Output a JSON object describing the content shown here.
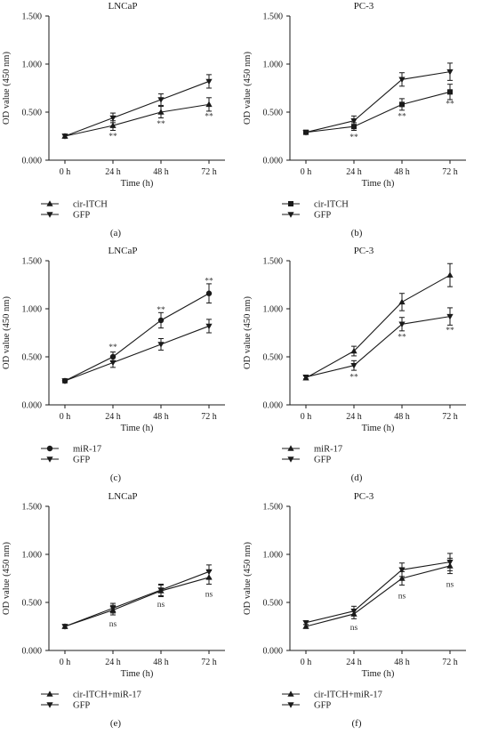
{
  "chart_data": [
    {
      "panel_letter": "(a)",
      "type": "line",
      "title": "LNCaP",
      "xlabel": "Time (h)",
      "ylabel": "OD value (450 nm)",
      "categories": [
        "0 h",
        "24 h",
        "48 h",
        "72 h"
      ],
      "ylim": [
        0,
        1.5
      ],
      "yticks": [
        "0.000",
        "0.500",
        "1.000",
        "1.500"
      ],
      "grid": false,
      "legend_position": "bottom-left",
      "series": [
        {
          "name": "cir-ITCH",
          "marker": "triangle-up",
          "values": [
            0.25,
            0.36,
            0.5,
            0.58
          ],
          "errors": [
            0.02,
            0.05,
            0.06,
            0.07
          ]
        },
        {
          "name": "GFP",
          "marker": "triangle-down",
          "values": [
            0.25,
            0.44,
            0.63,
            0.82
          ],
          "errors": [
            0.02,
            0.05,
            0.06,
            0.07
          ]
        }
      ],
      "annotations": [
        {
          "x": "24 h",
          "y": 0.25,
          "text": "**"
        },
        {
          "x": "48 h",
          "y": 0.38,
          "text": "**"
        },
        {
          "x": "72 h",
          "y": 0.46,
          "text": "**"
        }
      ]
    },
    {
      "panel_letter": "(b)",
      "type": "line",
      "title": "PC-3",
      "xlabel": "Time (h)",
      "ylabel": "OD value (450 nm)",
      "categories": [
        "0 h",
        "24 h",
        "48 h",
        "72 h"
      ],
      "ylim": [
        0,
        1.5
      ],
      "yticks": [
        "0.000",
        "0.500",
        "1.000",
        "1.500"
      ],
      "grid": false,
      "legend_position": "bottom-left",
      "series": [
        {
          "name": "cir-ITCH",
          "marker": "square",
          "values": [
            0.29,
            0.35,
            0.58,
            0.71
          ],
          "errors": [
            0.02,
            0.04,
            0.06,
            0.08
          ]
        },
        {
          "name": "GFP",
          "marker": "triangle-down",
          "values": [
            0.29,
            0.41,
            0.84,
            0.92
          ],
          "errors": [
            0.02,
            0.05,
            0.07,
            0.09
          ]
        }
      ],
      "annotations": [
        {
          "x": "24 h",
          "y": 0.24,
          "text": "**"
        },
        {
          "x": "48 h",
          "y": 0.46,
          "text": "**"
        },
        {
          "x": "72 h",
          "y": 0.59,
          "text": "**"
        }
      ]
    },
    {
      "panel_letter": "(c)",
      "type": "line",
      "title": "LNCaP",
      "xlabel": "Time (h)",
      "ylabel": "OD value (450 nm)",
      "categories": [
        "0 h",
        "24 h",
        "48 h",
        "72 h"
      ],
      "ylim": [
        0,
        1.5
      ],
      "yticks": [
        "0.000",
        "0.500",
        "1.000",
        "1.500"
      ],
      "grid": false,
      "legend_position": "bottom-left",
      "series": [
        {
          "name": "miR-17",
          "marker": "circle",
          "values": [
            0.25,
            0.5,
            0.88,
            1.16
          ],
          "errors": [
            0.02,
            0.05,
            0.08,
            0.1
          ]
        },
        {
          "name": "GFP",
          "marker": "triangle-down",
          "values": [
            0.25,
            0.44,
            0.63,
            0.82
          ],
          "errors": [
            0.02,
            0.05,
            0.06,
            0.07
          ]
        }
      ],
      "annotations": [
        {
          "x": "24 h",
          "y": 0.6,
          "text": "**"
        },
        {
          "x": "48 h",
          "y": 0.99,
          "text": "**"
        },
        {
          "x": "72 h",
          "y": 1.29,
          "text": "**"
        }
      ]
    },
    {
      "panel_letter": "(d)",
      "type": "line",
      "title": "PC-3",
      "xlabel": "Time (h)",
      "ylabel": "OD value (450 nm)",
      "categories": [
        "0 h",
        "24 h",
        "48 h",
        "72 h"
      ],
      "ylim": [
        0,
        1.5
      ],
      "yticks": [
        "0.000",
        "0.500",
        "1.000",
        "1.500"
      ],
      "grid": false,
      "legend_position": "bottom-left",
      "series": [
        {
          "name": "miR-17",
          "marker": "triangle-up",
          "values": [
            0.28,
            0.56,
            1.07,
            1.35
          ],
          "errors": [
            0.02,
            0.05,
            0.09,
            0.12
          ]
        },
        {
          "name": "GFP",
          "marker": "triangle-down",
          "values": [
            0.29,
            0.41,
            0.84,
            0.92
          ],
          "errors": [
            0.02,
            0.05,
            0.07,
            0.09
          ]
        }
      ],
      "annotations": [
        {
          "x": "24 h",
          "y": 0.29,
          "text": "**"
        },
        {
          "x": "48 h",
          "y": 0.71,
          "text": "**"
        },
        {
          "x": "72 h",
          "y": 0.78,
          "text": "**"
        }
      ]
    },
    {
      "panel_letter": "(e)",
      "type": "line",
      "title": "LNCaP",
      "xlabel": "Time (h)",
      "ylabel": "OD value (450 nm)",
      "categories": [
        "0 h",
        "24 h",
        "48 h",
        "72 h"
      ],
      "ylim": [
        0,
        1.5
      ],
      "yticks": [
        "0.000",
        "0.500",
        "1.000",
        "1.500"
      ],
      "grid": false,
      "legend_position": "bottom-left",
      "series": [
        {
          "name": "cir-ITCH+miR-17",
          "marker": "triangle-up",
          "values": [
            0.25,
            0.42,
            0.62,
            0.76
          ],
          "errors": [
            0.02,
            0.05,
            0.06,
            0.07
          ]
        },
        {
          "name": "GFP",
          "marker": "triangle-down",
          "values": [
            0.25,
            0.44,
            0.63,
            0.82
          ],
          "errors": [
            0.02,
            0.05,
            0.06,
            0.07
          ]
        }
      ],
      "annotations": [
        {
          "x": "24 h",
          "y": 0.28,
          "text": "ns"
        },
        {
          "x": "48 h",
          "y": 0.48,
          "text": "ns"
        },
        {
          "x": "72 h",
          "y": 0.59,
          "text": "ns"
        }
      ]
    },
    {
      "panel_letter": "(f)",
      "type": "line",
      "title": "PC-3",
      "xlabel": "Time (h)",
      "ylabel": "OD value (450 nm)",
      "categories": [
        "0 h",
        "24 h",
        "48 h",
        "72 h"
      ],
      "ylim": [
        0,
        1.5
      ],
      "yticks": [
        "0.000",
        "0.500",
        "1.000",
        "1.500"
      ],
      "grid": false,
      "legend_position": "bottom-left",
      "series": [
        {
          "name": "cir-ITCH+miR-17",
          "marker": "triangle-up",
          "values": [
            0.25,
            0.38,
            0.75,
            0.88
          ],
          "errors": [
            0.02,
            0.05,
            0.07,
            0.08
          ]
        },
        {
          "name": "GFP",
          "marker": "triangle-down",
          "values": [
            0.29,
            0.41,
            0.84,
            0.92
          ],
          "errors": [
            0.02,
            0.05,
            0.07,
            0.09
          ]
        }
      ],
      "annotations": [
        {
          "x": "24 h",
          "y": 0.24,
          "text": "ns"
        },
        {
          "x": "48 h",
          "y": 0.57,
          "text": "ns"
        },
        {
          "x": "72 h",
          "y": 0.69,
          "text": "ns"
        }
      ]
    }
  ]
}
